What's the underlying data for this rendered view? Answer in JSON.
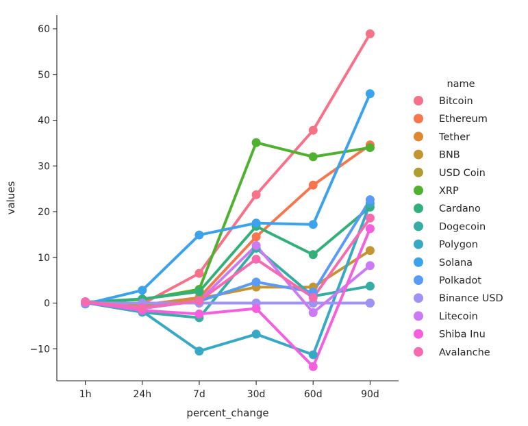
{
  "chart_data": {
    "type": "line",
    "xlabel": "percent_change",
    "ylabel": "values",
    "categories": [
      "1h",
      "24h",
      "7d",
      "30d",
      "60d",
      "90d"
    ],
    "ylim": [
      -17,
      63
    ],
    "yticks": [
      -10,
      0,
      10,
      20,
      30,
      40,
      50,
      60
    ],
    "ytick_labels": [
      "−10",
      "0",
      "10",
      "20",
      "30",
      "40",
      "50",
      "60"
    ],
    "grid": false,
    "legend": {
      "title": "name",
      "position": "right"
    },
    "series": [
      {
        "name": "Bitcoin",
        "color": "#f77189",
        "values": [
          0.3,
          -0.2,
          6.5,
          23.7,
          37.8,
          58.9
        ]
      },
      {
        "name": "Ethereum",
        "color": "#f7754f",
        "values": [
          0.2,
          -0.4,
          1.2,
          14.5,
          25.8,
          34.6
        ]
      },
      {
        "name": "Tether",
        "color": "#dc8932",
        "values": [
          0.0,
          0.0,
          0.0,
          0.0,
          0.0,
          0.0
        ]
      },
      {
        "name": "BNB",
        "color": "#c39532",
        "values": [
          0.1,
          -0.5,
          1.0,
          3.5,
          3.5,
          11.5
        ]
      },
      {
        "name": "USD Coin",
        "color": "#ae9d31",
        "values": [
          0.0,
          0.0,
          0.0,
          0.0,
          0.0,
          0.0
        ]
      },
      {
        "name": "XRP",
        "color": "#50b131",
        "values": [
          0.2,
          0.8,
          3.0,
          35.1,
          32.0,
          34.0
        ]
      },
      {
        "name": "Cardano",
        "color": "#33b07a",
        "values": [
          0.2,
          0.9,
          2.5,
          16.8,
          10.6,
          21.0
        ]
      },
      {
        "name": "Dogecoin",
        "color": "#35aca4",
        "values": [
          0.1,
          -2.0,
          -3.2,
          12.0,
          1.5,
          3.7
        ]
      },
      {
        "name": "Polygon",
        "color": "#38a9c5",
        "values": [
          0.2,
          -1.8,
          -10.5,
          -6.8,
          -11.3,
          21.8
        ]
      },
      {
        "name": "Solana",
        "color": "#3ba3ec",
        "values": [
          -0.2,
          2.8,
          14.9,
          17.5,
          17.2,
          45.8
        ]
      },
      {
        "name": "Polkadot",
        "color": "#5a9bf7",
        "values": [
          0.1,
          -1.0,
          0.4,
          4.6,
          2.4,
          22.6
        ]
      },
      {
        "name": "Binance USD",
        "color": "#9e93f4",
        "values": [
          0.0,
          0.0,
          0.0,
          0.0,
          0.0,
          0.0
        ]
      },
      {
        "name": "Litecoin",
        "color": "#cc7af4",
        "values": [
          0.1,
          -1.2,
          0.5,
          12.6,
          -2.1,
          8.2
        ]
      },
      {
        "name": "Shiba Inu",
        "color": "#f45fde",
        "values": [
          0.2,
          -1.6,
          -2.4,
          -1.2,
          -13.9,
          16.3
        ]
      },
      {
        "name": "Avalanche",
        "color": "#f66bb0",
        "values": [
          0.3,
          -1.0,
          0.5,
          9.6,
          1.2,
          18.6
        ]
      }
    ]
  }
}
